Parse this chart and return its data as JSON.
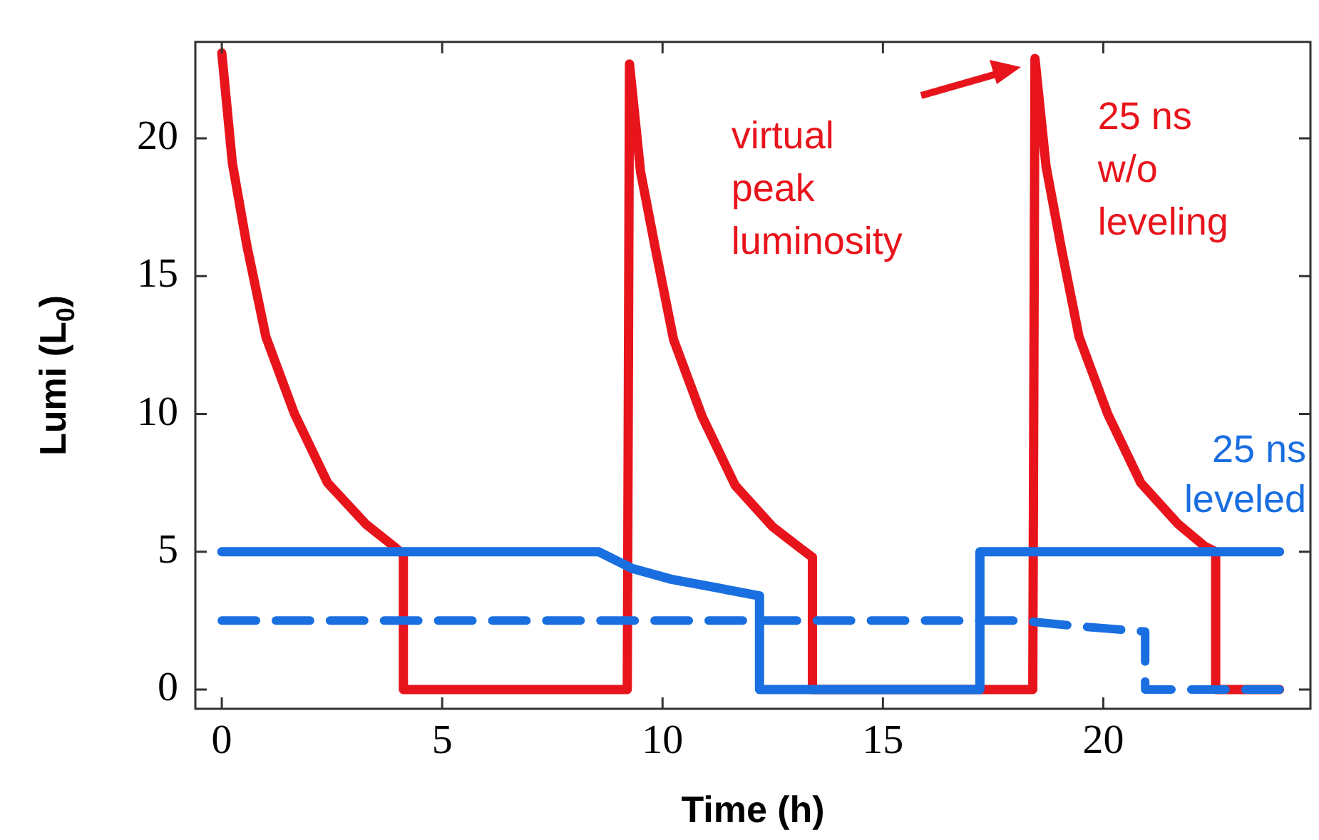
{
  "chart_data": {
    "type": "line",
    "xlabel": "Time (h)",
    "ylabel": "Lumi (L$_{0}$)",
    "xlim": [
      -0.6,
      24.7
    ],
    "ylim": [
      -0.7,
      23.5
    ],
    "xticks": [
      0,
      5,
      10,
      15,
      20
    ],
    "yticks": [
      0,
      5,
      10,
      15,
      20
    ],
    "grid": false,
    "legend": false,
    "marker": "none",
    "series": [
      {
        "name": "25 ns w/o leveling",
        "color": "#e8141c",
        "x": [
          0,
          0.24,
          0.57,
          1.0,
          1.65,
          2.4,
          3.27,
          3.9,
          4.12,
          4.12,
          9.2,
          9.25,
          9.5,
          9.85,
          10.25,
          10.9,
          11.65,
          12.5,
          13.15,
          13.4,
          13.4,
          18.4,
          18.45,
          18.7,
          19.05,
          19.45,
          20.1,
          20.85,
          21.7,
          22.3,
          22.55,
          22.55,
          24
        ],
        "values": [
          23.1,
          19.1,
          16.1,
          12.8,
          10.0,
          7.5,
          6.0,
          5.2,
          4.9,
          0,
          0,
          22.7,
          18.8,
          15.9,
          12.7,
          9.9,
          7.4,
          5.9,
          5.1,
          4.8,
          0,
          0,
          22.9,
          19.0,
          16.0,
          12.8,
          10.0,
          7.5,
          6.0,
          5.2,
          5.0,
          0,
          0
        ]
      },
      {
        "name": "25 ns leveled",
        "color": "#1a6fe0",
        "x": [
          0,
          8.55,
          9.3,
          10.2,
          11.2,
          12.2,
          12.2,
          17.2,
          17.2,
          24
        ],
        "values": [
          5,
          5,
          4.4,
          4.0,
          3.7,
          3.4,
          0,
          0,
          5,
          5
        ]
      },
      {
        "color": "#1a6fe0",
        "line_style": "dashed",
        "x": [
          0,
          18.15,
          19.4,
          20.95,
          20.95,
          24
        ],
        "values": [
          2.5,
          2.5,
          2.3,
          2.1,
          0,
          0
        ]
      }
    ],
    "annotations": [
      "virtual peak luminosity"
    ]
  }
}
